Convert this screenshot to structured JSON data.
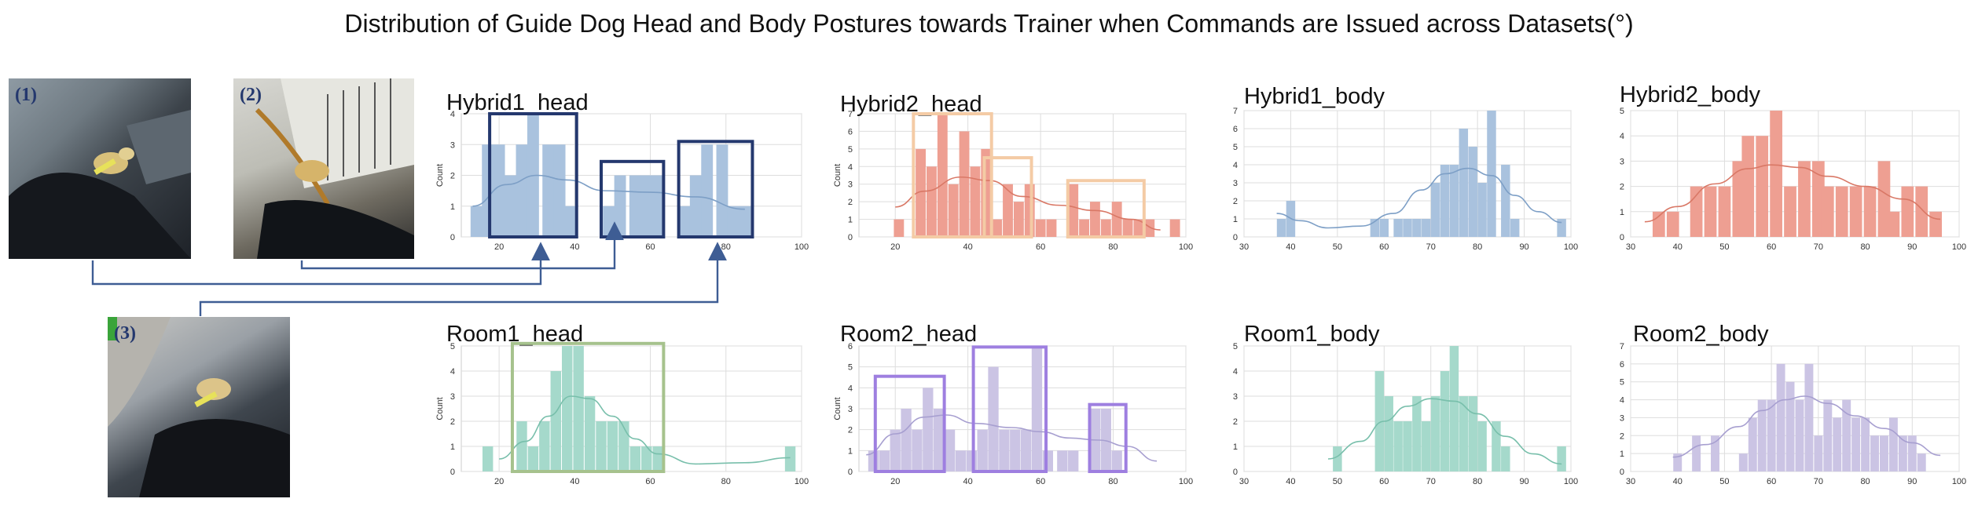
{
  "figure": {
    "title": "Distribution of Guide Dog Head and Body Postures towards Trainer when Commands are Issued across Datasets(°)",
    "photo_labels": [
      "(1)",
      "(2)",
      "(3)"
    ]
  },
  "colors": {
    "hybrid1": "#a9c2de",
    "hybrid1_line": "#7d9fc6",
    "hybrid2": "#ee9f92",
    "hybrid2_line": "#d97866",
    "room1": "#a5d9cb",
    "room1_line": "#78bfab",
    "room2": "#cbc4e4",
    "room2_line": "#a79fd0",
    "box_navy": "#24386e",
    "box_peach": "#f4cba5",
    "box_green": "#a6c28d",
    "box_purple": "#9e7fe0",
    "arrow": "#3e5d94",
    "grid": "#dddddd"
  },
  "chart_data": [
    {
      "type": "bar",
      "title": "Hybrid1_head",
      "ylabel": "Count",
      "xlim": [
        10,
        100
      ],
      "ylim": [
        0,
        4
      ],
      "xticks": [
        20,
        40,
        60,
        80,
        100
      ],
      "yticks": [
        0,
        1,
        2,
        3,
        4
      ],
      "bin_width": 3.3,
      "x": [
        14,
        17,
        20,
        23,
        26,
        29,
        33,
        36,
        39,
        49,
        52,
        56,
        59,
        62,
        69,
        72,
        75,
        79,
        82,
        85
      ],
      "values": [
        1,
        3,
        3,
        2,
        3,
        4,
        3,
        3,
        1,
        1,
        2,
        2,
        2,
        2,
        1,
        2,
        3,
        3,
        1,
        1
      ],
      "kde": [
        [
          13,
          1.0
        ],
        [
          22,
          1.7
        ],
        [
          30,
          2.0
        ],
        [
          38,
          1.85
        ],
        [
          48,
          1.5
        ],
        [
          60,
          1.45
        ],
        [
          72,
          1.3
        ],
        [
          85,
          0.9
        ]
      ]
    },
    {
      "type": "bar",
      "title": "Hybrid2_head",
      "ylabel": "Count",
      "xlim": [
        10,
        100
      ],
      "ylim": [
        0,
        7
      ],
      "xticks": [
        20,
        40,
        60,
        80,
        100
      ],
      "yticks": [
        0,
        1,
        2,
        3,
        4,
        5,
        6,
        7
      ],
      "bin_width": 3.0,
      "x": [
        21,
        27,
        30,
        33,
        36,
        39,
        42,
        45,
        48,
        51,
        54,
        57,
        60,
        63,
        69,
        72,
        75,
        78,
        81,
        84,
        87,
        90,
        97
      ],
      "values": [
        1,
        5,
        4,
        7,
        3,
        6,
        4,
        5,
        1,
        3,
        2,
        3,
        1,
        1,
        3,
        1,
        2,
        1,
        2,
        1,
        1,
        1,
        1
      ],
      "kde": [
        [
          20,
          1.7
        ],
        [
          28,
          2.6
        ],
        [
          38,
          3.4
        ],
        [
          46,
          3.2
        ],
        [
          55,
          2.3
        ],
        [
          65,
          1.8
        ],
        [
          75,
          1.5
        ],
        [
          85,
          1.0
        ],
        [
          93,
          0.4
        ]
      ]
    },
    {
      "type": "bar",
      "title": "Hybrid1_body",
      "ylabel": "",
      "xlim": [
        30,
        100
      ],
      "ylim": [
        0,
        7
      ],
      "xticks": [
        30,
        40,
        50,
        60,
        70,
        80,
        90,
        100
      ],
      "yticks": [
        0,
        1,
        2,
        3,
        4,
        5,
        6,
        7
      ],
      "bin_width": 2.1,
      "x": [
        38,
        40,
        58,
        60,
        63,
        65,
        67,
        69,
        71,
        73,
        75,
        77,
        79,
        81,
        83,
        86,
        88,
        98
      ],
      "values": [
        1,
        2,
        1,
        1,
        1,
        1,
        1,
        1,
        3,
        4,
        4,
        6,
        5,
        3,
        7,
        4,
        1,
        1
      ],
      "kde": [
        [
          37,
          1.3
        ],
        [
          42,
          0.9
        ],
        [
          48,
          0.5
        ],
        [
          55,
          0.6
        ],
        [
          62,
          1.3
        ],
        [
          68,
          2.6
        ],
        [
          73,
          3.5
        ],
        [
          78,
          3.8
        ],
        [
          83,
          3.4
        ],
        [
          88,
          2.3
        ],
        [
          93,
          1.4
        ],
        [
          98,
          0.8
        ]
      ]
    },
    {
      "type": "bar",
      "title": "Hybrid2_body",
      "ylabel": "",
      "xlim": [
        30,
        100
      ],
      "ylim": [
        0,
        5
      ],
      "xticks": [
        30,
        40,
        50,
        60,
        70,
        80,
        90,
        100
      ],
      "yticks": [
        0,
        1,
        2,
        3,
        4,
        5
      ],
      "bin_width": 2.8,
      "x": [
        36,
        39,
        44,
        47,
        50,
        53,
        55,
        58,
        61,
        64,
        67,
        70,
        72,
        75,
        78,
        81,
        84,
        86,
        89,
        92,
        95
      ],
      "values": [
        1,
        1,
        2,
        2,
        2,
        3,
        4,
        4,
        5,
        2,
        3,
        3,
        2,
        2,
        2,
        2,
        3,
        1,
        2,
        2,
        1
      ],
      "kde": [
        [
          33,
          0.6
        ],
        [
          40,
          1.2
        ],
        [
          48,
          2.1
        ],
        [
          55,
          2.7
        ],
        [
          60,
          2.85
        ],
        [
          66,
          2.75
        ],
        [
          72,
          2.4
        ],
        [
          80,
          2.0
        ],
        [
          88,
          1.5
        ],
        [
          96,
          0.7
        ]
      ]
    },
    {
      "type": "bar",
      "title": "Room1_head",
      "ylabel": "Count",
      "xlim": [
        10,
        100
      ],
      "ylim": [
        0,
        5
      ],
      "xticks": [
        20,
        40,
        60,
        80,
        100
      ],
      "yticks": [
        0,
        1,
        2,
        3,
        4,
        5
      ],
      "bin_width": 3.0,
      "x": [
        17,
        26,
        29,
        32,
        35,
        38,
        41,
        44,
        47,
        50,
        53,
        56,
        59,
        62,
        97
      ],
      "values": [
        1,
        2,
        1,
        2,
        4,
        5,
        5,
        3,
        2,
        2,
        2,
        1,
        1,
        1,
        1
      ],
      "kde": [
        [
          20,
          0.5
        ],
        [
          27,
          1.2
        ],
        [
          33,
          2.2
        ],
        [
          39,
          3.0
        ],
        [
          44,
          2.9
        ],
        [
          50,
          2.2
        ],
        [
          56,
          1.3
        ],
        [
          62,
          0.7
        ],
        [
          72,
          0.3
        ],
        [
          85,
          0.35
        ],
        [
          97,
          0.55
        ]
      ]
    },
    {
      "type": "bar",
      "title": "Room2_head",
      "ylabel": "Count",
      "xlim": [
        10,
        100
      ],
      "ylim": [
        0,
        6
      ],
      "xticks": [
        20,
        40,
        60,
        80,
        100
      ],
      "yticks": [
        0,
        1,
        2,
        3,
        4,
        5,
        6
      ],
      "bin_width": 3.1,
      "x": [
        14,
        17,
        20,
        23,
        26,
        29,
        32,
        35,
        38,
        41,
        44,
        47,
        50,
        53,
        56,
        59,
        62,
        66,
        69,
        75,
        78,
        81
      ],
      "values": [
        1,
        1,
        2,
        3,
        2,
        4,
        3,
        2,
        1,
        1,
        2,
        5,
        2,
        2,
        2,
        6,
        1,
        1,
        1,
        3,
        3,
        1
      ],
      "kde": [
        [
          12,
          0.8
        ],
        [
          20,
          1.8
        ],
        [
          28,
          2.6
        ],
        [
          34,
          2.7
        ],
        [
          42,
          2.3
        ],
        [
          52,
          2.1
        ],
        [
          60,
          1.9
        ],
        [
          68,
          1.6
        ],
        [
          76,
          1.5
        ],
        [
          84,
          1.2
        ],
        [
          92,
          0.5
        ]
      ]
    },
    {
      "type": "bar",
      "title": "Room1_body",
      "ylabel": "",
      "xlim": [
        30,
        100
      ],
      "ylim": [
        0,
        5
      ],
      "xticks": [
        30,
        40,
        50,
        60,
        70,
        80,
        90,
        100
      ],
      "yticks": [
        0,
        1,
        2,
        3,
        4,
        5
      ],
      "bin_width": 2.1,
      "x": [
        50,
        59,
        61,
        63,
        65,
        67,
        69,
        71,
        73,
        75,
        77,
        79,
        81,
        84,
        86,
        98
      ],
      "values": [
        1,
        4,
        3,
        2,
        2,
        3,
        2,
        3,
        4,
        5,
        3,
        3,
        2,
        2,
        1,
        1
      ],
      "kde": [
        [
          48,
          0.5
        ],
        [
          55,
          1.2
        ],
        [
          60,
          2.0
        ],
        [
          65,
          2.6
        ],
        [
          70,
          2.9
        ],
        [
          75,
          2.8
        ],
        [
          80,
          2.3
        ],
        [
          86,
          1.4
        ],
        [
          92,
          0.7
        ],
        [
          98,
          0.3
        ]
      ]
    },
    {
      "type": "bar",
      "title": "Room2_body",
      "ylabel": "",
      "xlim": [
        30,
        100
      ],
      "ylim": [
        0,
        7
      ],
      "xticks": [
        30,
        40,
        50,
        60,
        70,
        80,
        90,
        100
      ],
      "yticks": [
        0,
        1,
        2,
        3,
        4,
        5,
        6,
        7
      ],
      "bin_width": 2.0,
      "x": [
        40,
        44,
        48,
        54,
        56,
        58,
        60,
        62,
        64,
        66,
        68,
        70,
        72,
        74,
        76,
        78,
        80,
        82,
        84,
        86,
        88,
        90,
        92
      ],
      "values": [
        1,
        2,
        2,
        1,
        3,
        4,
        4,
        6,
        5,
        4,
        6,
        2,
        4,
        3,
        4,
        3,
        3,
        2,
        2,
        3,
        2,
        2,
        1
      ],
      "kde": [
        [
          39,
          0.8
        ],
        [
          46,
          1.5
        ],
        [
          53,
          2.5
        ],
        [
          58,
          3.4
        ],
        [
          63,
          4.0
        ],
        [
          67,
          4.2
        ],
        [
          72,
          3.8
        ],
        [
          78,
          3.1
        ],
        [
          84,
          2.4
        ],
        [
          90,
          1.6
        ],
        [
          96,
          0.9
        ]
      ]
    }
  ]
}
